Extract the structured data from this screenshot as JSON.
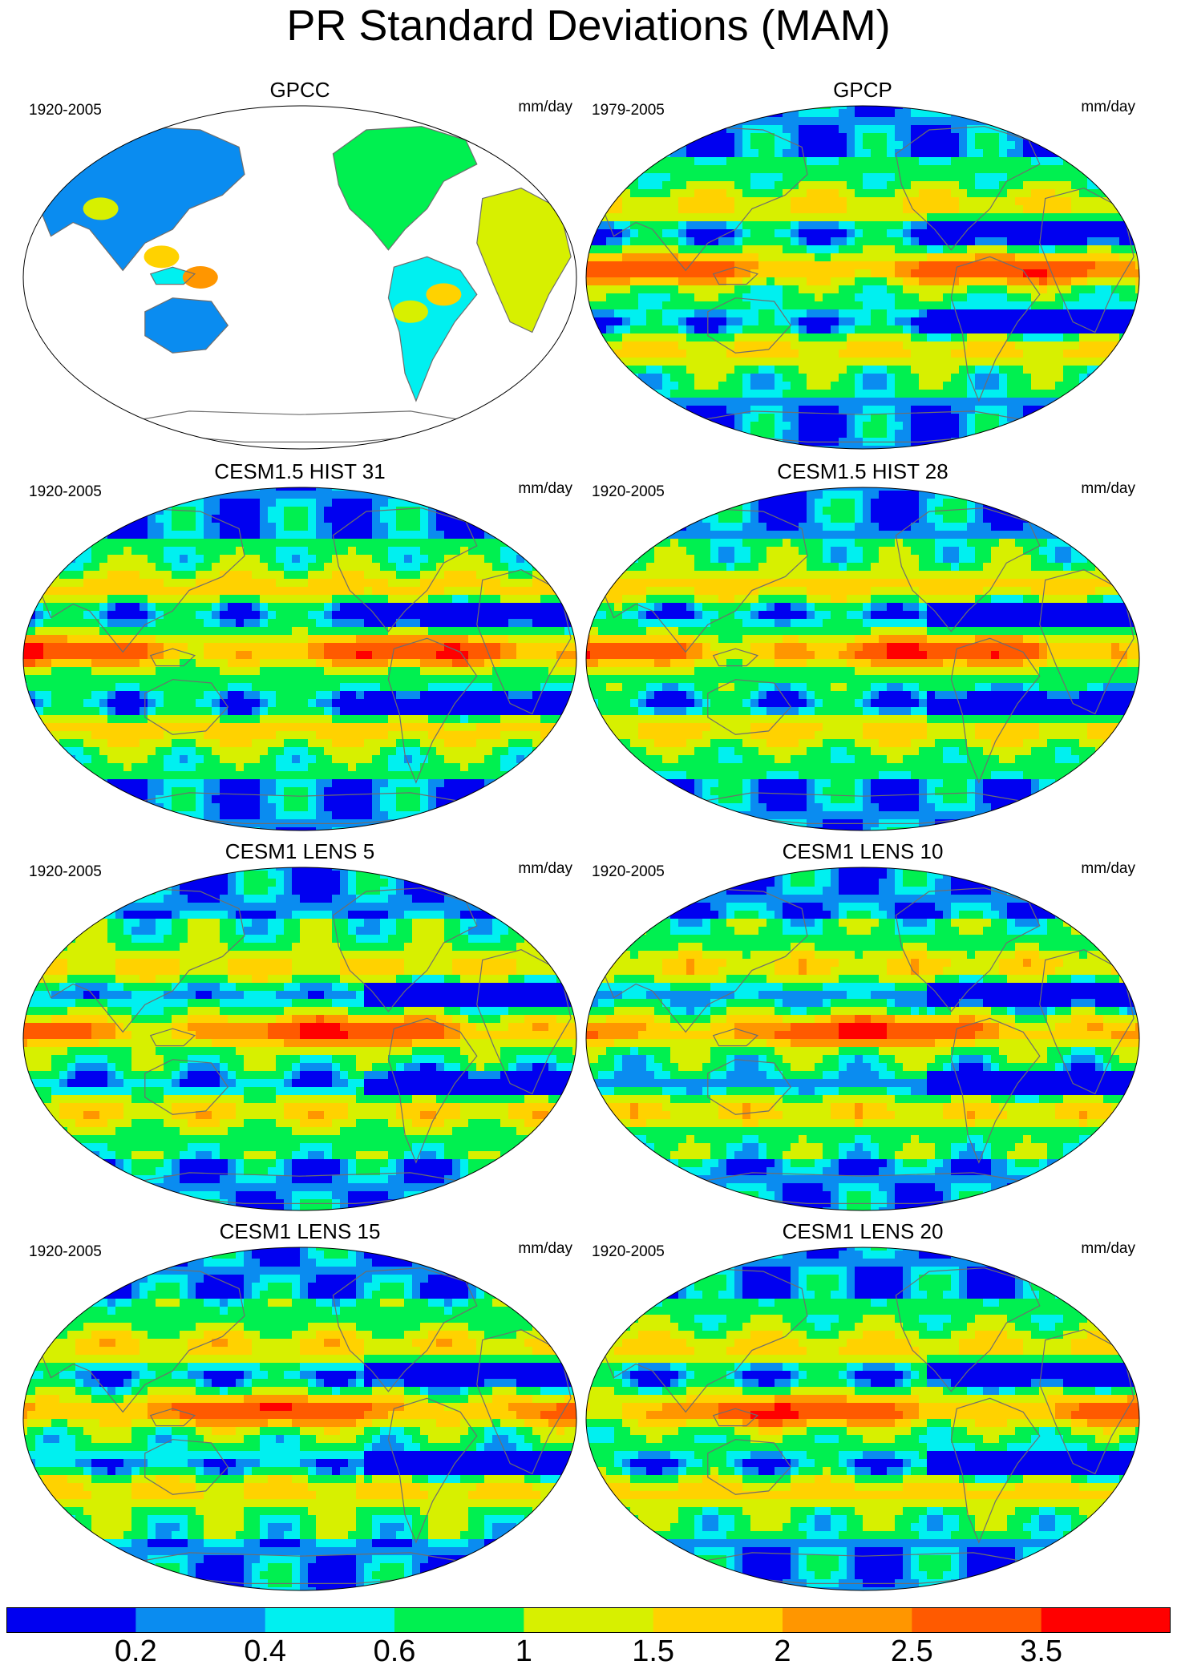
{
  "title": "PR Standard Deviations (MAM)",
  "units": "mm/day",
  "colorbar": {
    "colors": [
      "#0000f0",
      "#0a8cf0",
      "#00f0f0",
      "#00f050",
      "#d7f000",
      "#ffd200",
      "#ff9600",
      "#ff5a00",
      "#ff0000"
    ],
    "labels": [
      "0.2",
      "0.4",
      "0.6",
      "1",
      "1.5",
      "2",
      "2.5",
      "3.5"
    ]
  },
  "panels": [
    {
      "title": "GPCC",
      "period": "1920-2005",
      "kind": "land",
      "variant": 0
    },
    {
      "title": "GPCP",
      "period": "1979-2005",
      "kind": "obs",
      "variant": 1
    },
    {
      "title": "CESM1.5 HIST 31",
      "period": "1920-2005",
      "kind": "model",
      "variant": 2
    },
    {
      "title": "CESM1.5 HIST 28",
      "period": "1920-2005",
      "kind": "model",
      "variant": 3
    },
    {
      "title": "CESM1 LENS 5",
      "period": "1920-2005",
      "kind": "lens",
      "variant": 4
    },
    {
      "title": "CESM1 LENS 10",
      "period": "1920-2005",
      "kind": "lens",
      "variant": 5
    },
    {
      "title": "CESM1 LENS 15",
      "period": "1920-2005",
      "kind": "lens",
      "variant": 6
    },
    {
      "title": "CESM1 LENS 20",
      "period": "1920-2005",
      "kind": "lens",
      "variant": 7
    }
  ]
}
